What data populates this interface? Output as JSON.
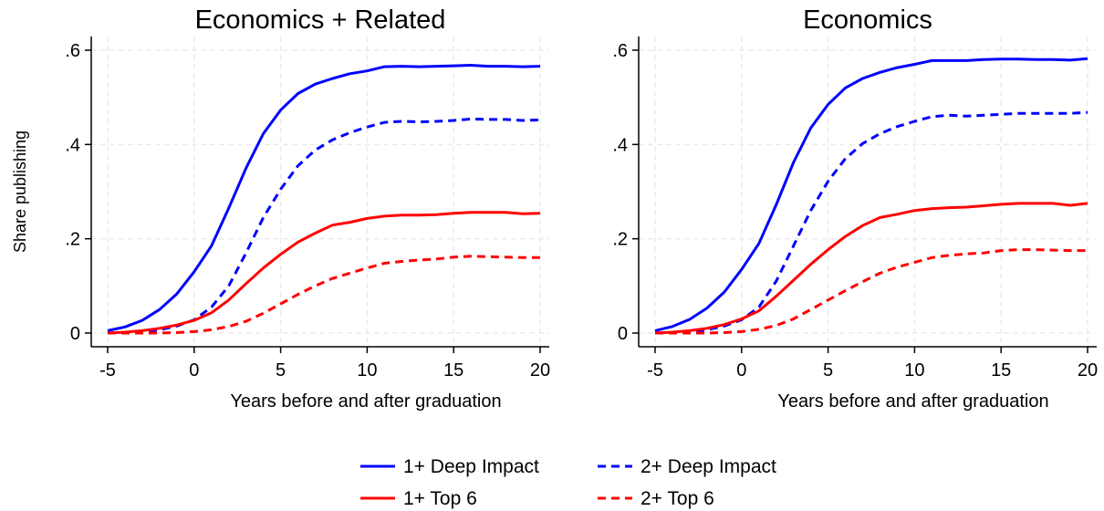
{
  "shared_ylabel": "Share publishing",
  "legend": {
    "placement": "bottom-center",
    "columns": 2,
    "entries": [
      {
        "series": "1+ Deep Impact",
        "color": "#0000ff",
        "dash": "solid"
      },
      {
        "series": "2+ Deep Impact",
        "color": "#0000ff",
        "dash": "dashed"
      },
      {
        "series": "1+ Top 6",
        "color": "#ff0000",
        "dash": "solid"
      },
      {
        "series": "2+ Top 6",
        "color": "#ff0000",
        "dash": "dashed"
      }
    ]
  },
  "chart_data": [
    {
      "type": "line",
      "title": "Economics + Related",
      "xlabel": "Years before and after graduation",
      "ylabel": "Share publishing",
      "xlim": [
        -5,
        20
      ],
      "ylim": [
        0,
        0.6
      ],
      "xticks": [
        -5,
        0,
        5,
        10,
        15,
        20
      ],
      "xtick_labels": [
        "-5",
        "0",
        "5",
        "10",
        "15",
        "20"
      ],
      "yticks": [
        0,
        0.2,
        0.4,
        0.6
      ],
      "ytick_labels": [
        "0",
        ".2",
        ".4",
        ".6"
      ],
      "grid": true,
      "x": [
        -5,
        -4,
        -3,
        -2,
        -1,
        0,
        1,
        2,
        3,
        4,
        5,
        6,
        7,
        8,
        9,
        10,
        11,
        12,
        13,
        14,
        15,
        16,
        17,
        18,
        19,
        20
      ],
      "series": [
        {
          "name": "1+ Deep Impact",
          "color": "#0000ff",
          "dash": "solid",
          "values": [
            0.005,
            0.013,
            0.027,
            0.05,
            0.083,
            0.13,
            0.185,
            0.265,
            0.35,
            0.423,
            0.473,
            0.508,
            0.528,
            0.54,
            0.55,
            0.556,
            0.565,
            0.566,
            0.565,
            0.566,
            0.567,
            0.568,
            0.566,
            0.566,
            0.565,
            0.566
          ]
        },
        {
          "name": "2+ Deep Impact",
          "color": "#0000ff",
          "dash": "dashed",
          "values": [
            0.0,
            0.001,
            0.003,
            0.007,
            0.015,
            0.028,
            0.055,
            0.1,
            0.17,
            0.245,
            0.305,
            0.355,
            0.388,
            0.41,
            0.425,
            0.437,
            0.447,
            0.449,
            0.448,
            0.449,
            0.451,
            0.454,
            0.453,
            0.453,
            0.451,
            0.452
          ]
        },
        {
          "name": "1+ Top 6",
          "color": "#ff0000",
          "dash": "solid",
          "values": [
            0.0,
            0.002,
            0.005,
            0.01,
            0.017,
            0.027,
            0.043,
            0.07,
            0.105,
            0.138,
            0.167,
            0.193,
            0.212,
            0.229,
            0.235,
            0.243,
            0.248,
            0.25,
            0.25,
            0.251,
            0.254,
            0.256,
            0.256,
            0.256,
            0.253,
            0.254
          ]
        },
        {
          "name": "2+ Top 6",
          "color": "#ff0000",
          "dash": "dashed",
          "values": [
            0.0,
            0.0,
            0.0,
            0.0,
            0.001,
            0.003,
            0.007,
            0.014,
            0.025,
            0.042,
            0.062,
            0.082,
            0.1,
            0.116,
            0.127,
            0.138,
            0.148,
            0.152,
            0.155,
            0.157,
            0.161,
            0.163,
            0.162,
            0.161,
            0.16,
            0.16
          ]
        }
      ]
    },
    {
      "type": "line",
      "title": "Economics",
      "xlabel": "Years before and after graduation",
      "ylabel": "",
      "xlim": [
        -5,
        20
      ],
      "ylim": [
        0,
        0.6
      ],
      "xticks": [
        -5,
        0,
        5,
        10,
        15,
        20
      ],
      "xtick_labels": [
        "-5",
        "0",
        "5",
        "10",
        "15",
        "20"
      ],
      "yticks": [
        0,
        0.2,
        0.4,
        0.6
      ],
      "ytick_labels": [
        "0",
        ".2",
        ".4",
        ".6"
      ],
      "grid": true,
      "x": [
        -5,
        -4,
        -3,
        -2,
        -1,
        0,
        1,
        2,
        3,
        4,
        5,
        6,
        7,
        8,
        9,
        10,
        11,
        12,
        13,
        14,
        15,
        16,
        17,
        18,
        19,
        20
      ],
      "series": [
        {
          "name": "1+ Deep Impact",
          "color": "#0000ff",
          "dash": "solid",
          "values": [
            0.005,
            0.014,
            0.029,
            0.053,
            0.087,
            0.135,
            0.19,
            0.272,
            0.362,
            0.435,
            0.485,
            0.52,
            0.54,
            0.553,
            0.563,
            0.57,
            0.578,
            0.578,
            0.578,
            0.58,
            0.581,
            0.581,
            0.58,
            0.58,
            0.579,
            0.582
          ]
        },
        {
          "name": "2+ Deep Impact",
          "color": "#0000ff",
          "dash": "dashed",
          "values": [
            0.0,
            0.001,
            0.003,
            0.007,
            0.015,
            0.028,
            0.055,
            0.11,
            0.185,
            0.26,
            0.322,
            0.37,
            0.402,
            0.423,
            0.438,
            0.449,
            0.459,
            0.462,
            0.46,
            0.462,
            0.464,
            0.466,
            0.466,
            0.466,
            0.466,
            0.468
          ]
        },
        {
          "name": "1+ Top 6",
          "color": "#ff0000",
          "dash": "solid",
          "values": [
            0.0,
            0.002,
            0.005,
            0.01,
            0.018,
            0.03,
            0.047,
            0.078,
            0.112,
            0.146,
            0.177,
            0.205,
            0.228,
            0.245,
            0.252,
            0.26,
            0.264,
            0.266,
            0.267,
            0.27,
            0.273,
            0.275,
            0.275,
            0.275,
            0.271,
            0.275
          ]
        },
        {
          "name": "2+ Top 6",
          "color": "#ff0000",
          "dash": "dashed",
          "values": [
            0.0,
            0.0,
            0.0,
            0.0,
            0.001,
            0.003,
            0.008,
            0.016,
            0.03,
            0.05,
            0.07,
            0.09,
            0.109,
            0.127,
            0.14,
            0.15,
            0.16,
            0.165,
            0.168,
            0.17,
            0.175,
            0.177,
            0.177,
            0.176,
            0.175,
            0.175
          ]
        }
      ]
    }
  ]
}
